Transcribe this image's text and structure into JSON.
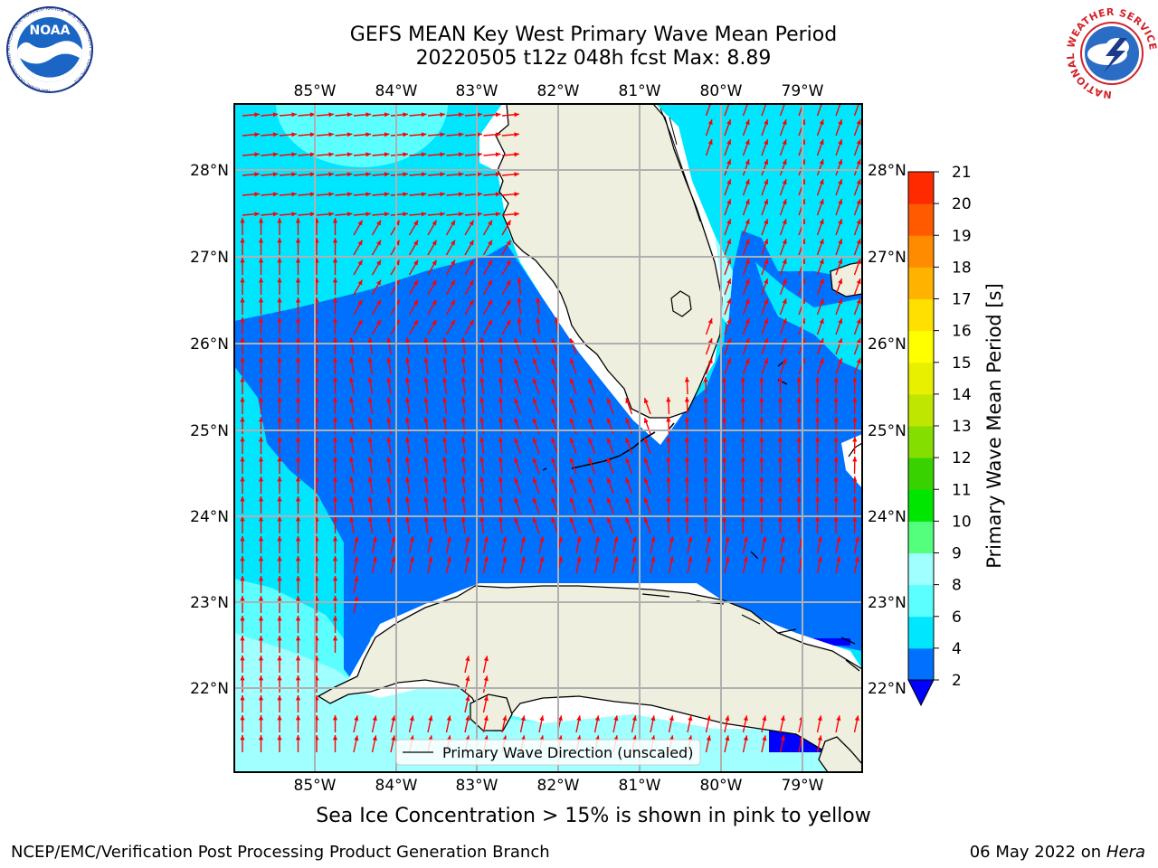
{
  "title_line1": "GEFS MEAN Key West Primary Wave Mean Period",
  "title_line2": "20220505 t12z 048h fcst   Max: 8.89",
  "note": "Sea Ice Concentration > 15% is shown in pink to yellow",
  "footer_left": "NCEP/EMC/Verification Post Processing Product Generation Branch",
  "footer_date": "06 May 2022 on",
  "footer_host": "Hera",
  "legend_label": "Primary Wave Direction (unscaled)",
  "colorbar": {
    "label": "Primary Wave Mean Period [s]",
    "ticks": [
      "2",
      "4",
      "6",
      "8",
      "9",
      "10",
      "11",
      "12",
      "13",
      "14",
      "15",
      "16",
      "17",
      "18",
      "19",
      "20",
      "21"
    ],
    "colors": [
      "#0071ff",
      "#00e6ff",
      "#5cffff",
      "#a0ffff",
      "#53ff7c",
      "#00e600",
      "#38d200",
      "#84de00",
      "#bfe600",
      "#e8f000",
      "#ffff00",
      "#ffe000",
      "#ffb300",
      "#ff8c00",
      "#ff5a00",
      "#ff2a00"
    ],
    "under_color": "#0000ff"
  },
  "axes": {
    "lon_labels": [
      "85°W",
      "84°W",
      "83°W",
      "82°W",
      "81°W",
      "80°W",
      "79°W"
    ],
    "lat_labels": [
      "28°N",
      "27°N",
      "26°N",
      "25°N",
      "24°N",
      "23°N",
      "22°N"
    ]
  },
  "map": {
    "land_color": "#efefdf",
    "arrow_color": "#ff0000",
    "grid_color": "#b0b0b0"
  },
  "logos": {
    "noaa_text": "NOAA",
    "noaa_ring_text": "NATIONAL OCEANIC AND ATMOSPHERIC ADMINISTRATION · U.S. DEPARTMENT OF COMMERCE ·",
    "nws_ring_text": "NATIONAL WEATHER SERVICE"
  }
}
